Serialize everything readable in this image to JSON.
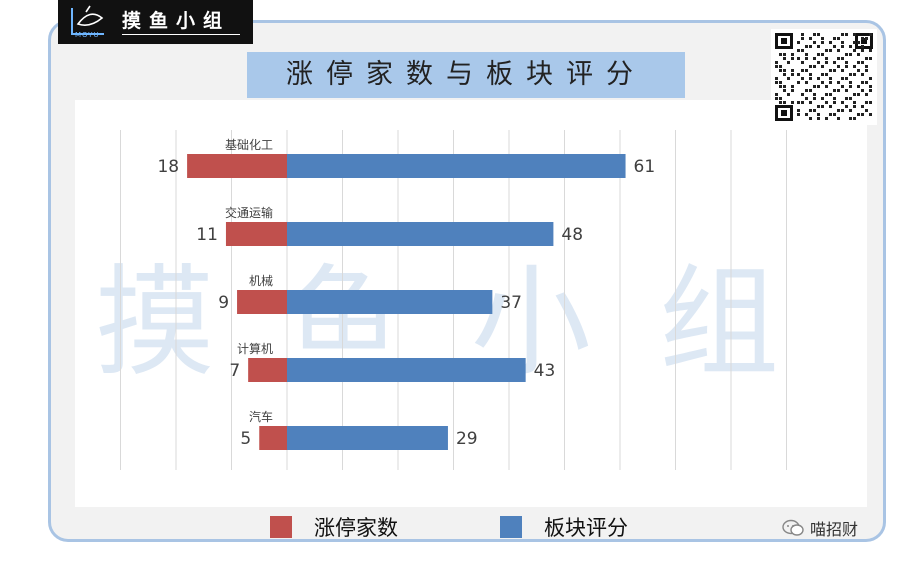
{
  "logo": {
    "sub": "MOYU",
    "text": "摸鱼小组"
  },
  "watermark": "摸鱼小组",
  "credit": "喵招财",
  "colors": {
    "limit_up": "#c0504d",
    "score": "#4f81bd"
  },
  "chart_data": {
    "type": "bar",
    "orientation": "horizontal",
    "title": "涨停家数与板块评分",
    "categories": [
      "基础化工",
      "交通运输",
      "机械",
      "计算机",
      "汽车"
    ],
    "series": [
      {
        "name": "涨停家数",
        "values": [
          18,
          11,
          9,
          7,
          5
        ],
        "color": "#c0504d",
        "direction": "left"
      },
      {
        "name": "板块评分",
        "values": [
          61,
          48,
          37,
          43,
          29
        ],
        "color": "#4f81bd",
        "direction": "right"
      }
    ],
    "legend": [
      "涨停家数",
      "板块评分"
    ],
    "legend_position": "bottom",
    "grid": true
  }
}
